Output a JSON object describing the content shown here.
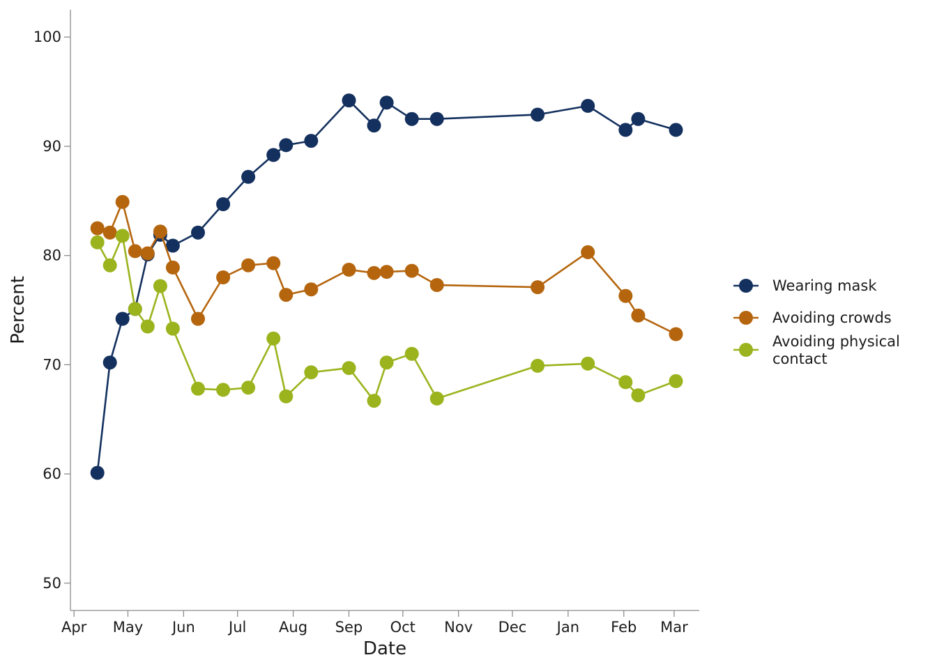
{
  "chart_data": {
    "type": "line",
    "xlabel": "Date",
    "ylabel": "Percent",
    "ylim": [
      47.5,
      102.5
    ],
    "yticks": [
      50,
      60,
      70,
      80,
      90,
      100
    ],
    "x_tick_labels": [
      "Apr",
      "May",
      "Jun",
      "Jul",
      "Aug",
      "Sep",
      "Oct",
      "Nov",
      "Dec",
      "Jan",
      "Feb",
      "Mar"
    ],
    "x_tick_dates": [
      "2020-04-01",
      "2020-05-01",
      "2020-06-01",
      "2020-07-01",
      "2020-08-01",
      "2020-09-01",
      "2020-10-01",
      "2020-11-01",
      "2020-12-01",
      "2021-01-01",
      "2021-02-01",
      "2021-03-01"
    ],
    "xlim": [
      "2020-03-30",
      "2021-03-15"
    ],
    "grid": false,
    "legend_position": "right",
    "x": [
      "2020-04-14",
      "2020-04-21",
      "2020-04-28",
      "2020-05-05",
      "2020-05-12",
      "2020-05-19",
      "2020-05-26",
      "2020-06-09",
      "2020-06-23",
      "2020-07-07",
      "2020-07-21",
      "2020-07-28",
      "2020-08-11",
      "2020-09-01",
      "2020-09-15",
      "2020-09-22",
      "2020-10-06",
      "2020-10-20",
      "2020-12-15",
      "2021-01-12",
      "2021-02-02",
      "2021-02-09",
      "2021-03-02"
    ],
    "series": [
      {
        "name": "Wearing mask",
        "color": "#13305e",
        "values": [
          60.1,
          70.2,
          74.2,
          75.1,
          80.1,
          81.9,
          80.9,
          82.1,
          84.7,
          87.2,
          89.2,
          90.1,
          90.5,
          94.2,
          91.9,
          94.0,
          92.5,
          92.5,
          92.9,
          93.7,
          91.5,
          92.5,
          91.5
        ]
      },
      {
        "name": "Avoiding crowds",
        "color": "#b5650d",
        "values": [
          82.5,
          82.1,
          84.9,
          80.4,
          80.2,
          82.2,
          78.9,
          74.2,
          78.0,
          79.1,
          79.3,
          76.4,
          76.9,
          78.7,
          78.4,
          78.5,
          78.6,
          77.3,
          77.1,
          80.3,
          76.3,
          74.5,
          72.8
        ]
      },
      {
        "name": "Avoiding physical contact",
        "color": "#9bb31c",
        "values": [
          81.2,
          79.1,
          81.8,
          75.1,
          73.5,
          77.2,
          73.3,
          67.8,
          67.7,
          67.9,
          72.4,
          67.1,
          69.3,
          69.7,
          66.7,
          70.2,
          71.0,
          66.9,
          69.9,
          70.1,
          68.4,
          67.2,
          68.5
        ]
      }
    ]
  }
}
